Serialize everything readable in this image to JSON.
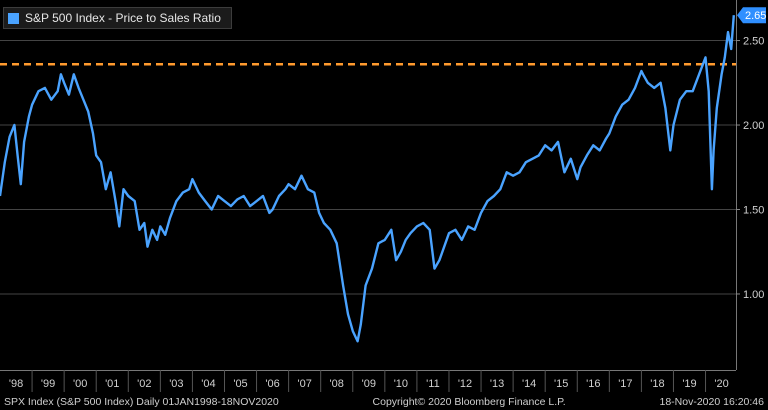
{
  "colors": {
    "background": "#000000",
    "series": "#4aa3ff",
    "reference": "#ff9a2e",
    "grid": "#444444",
    "badge": "#2f8fff"
  },
  "chart_data": {
    "type": "line",
    "title": "",
    "legend": {
      "placement": "top-left",
      "entries": [
        "S&P 500 Index - Price to Sales Ratio"
      ]
    },
    "xlabel": "",
    "ylabel": "",
    "x_tick_labels": [
      "'98",
      "'99",
      "'00",
      "'01",
      "'02",
      "'03",
      "'04",
      "'05",
      "'06",
      "'07",
      "'08",
      "'09",
      "'10",
      "'11",
      "'12",
      "'13",
      "'14",
      "'15",
      "'16",
      "'17",
      "'18",
      "'19",
      "'20"
    ],
    "y_ticks": [
      1.0,
      1.5,
      2.0,
      2.5
    ],
    "y_tick_labels": [
      "1.00",
      "1.50",
      "2.00",
      "2.50"
    ],
    "ylim": [
      0.55,
      2.74
    ],
    "xlim": [
      1998.0,
      2020.95
    ],
    "grid": "horizontal",
    "reference_line": {
      "y": 2.36,
      "style": "dashed"
    },
    "last_value_label": "2.65",
    "series": [
      {
        "name": "S&P 500 Index - Price to Sales Ratio",
        "x": [
          1998.0,
          1998.15,
          1998.3,
          1998.45,
          1998.55,
          1998.65,
          1998.75,
          1998.9,
          1999.0,
          1999.2,
          1999.4,
          1999.6,
          1999.8,
          1999.9,
          2000.0,
          2000.15,
          2000.3,
          2000.45,
          2000.6,
          2000.75,
          2000.9,
          2001.0,
          2001.15,
          2001.3,
          2001.45,
          2001.6,
          2001.72,
          2001.85,
          2002.0,
          2002.2,
          2002.35,
          2002.5,
          2002.6,
          2002.75,
          2002.9,
          2003.0,
          2003.15,
          2003.3,
          2003.5,
          2003.7,
          2003.9,
          2004.0,
          2004.2,
          2004.4,
          2004.6,
          2004.8,
          2005.0,
          2005.2,
          2005.4,
          2005.6,
          2005.8,
          2006.0,
          2006.2,
          2006.4,
          2006.5,
          2006.7,
          2006.9,
          2007.0,
          2007.2,
          2007.4,
          2007.6,
          2007.8,
          2007.95,
          2008.1,
          2008.3,
          2008.5,
          2008.7,
          2008.85,
          2009.0,
          2009.15,
          2009.25,
          2009.4,
          2009.6,
          2009.8,
          2010.0,
          2010.2,
          2010.35,
          2010.5,
          2010.65,
          2010.8,
          2011.0,
          2011.2,
          2011.4,
          2011.55,
          2011.7,
          2011.85,
          2012.0,
          2012.2,
          2012.4,
          2012.6,
          2012.8,
          2013.0,
          2013.2,
          2013.4,
          2013.6,
          2013.8,
          2014.0,
          2014.2,
          2014.4,
          2014.6,
          2014.8,
          2015.0,
          2015.2,
          2015.4,
          2015.6,
          2015.8,
          2016.0,
          2016.1,
          2016.3,
          2016.5,
          2016.7,
          2016.9,
          2017.0,
          2017.2,
          2017.4,
          2017.6,
          2017.8,
          2018.0,
          2018.05,
          2018.2,
          2018.4,
          2018.6,
          2018.75,
          2018.9,
          2019.0,
          2019.2,
          2019.4,
          2019.6,
          2019.8,
          2020.0,
          2020.1,
          2020.2,
          2020.25,
          2020.35,
          2020.5,
          2020.6,
          2020.7,
          2020.8,
          2020.88
        ],
        "values": [
          1.58,
          1.78,
          1.93,
          2.0,
          1.82,
          1.65,
          1.9,
          2.05,
          2.12,
          2.2,
          2.22,
          2.15,
          2.2,
          2.3,
          2.25,
          2.18,
          2.3,
          2.22,
          2.15,
          2.08,
          1.95,
          1.82,
          1.78,
          1.62,
          1.72,
          1.55,
          1.4,
          1.62,
          1.58,
          1.55,
          1.38,
          1.42,
          1.28,
          1.38,
          1.32,
          1.4,
          1.35,
          1.45,
          1.55,
          1.6,
          1.62,
          1.68,
          1.6,
          1.55,
          1.5,
          1.58,
          1.55,
          1.52,
          1.56,
          1.58,
          1.52,
          1.55,
          1.58,
          1.48,
          1.5,
          1.58,
          1.62,
          1.65,
          1.62,
          1.7,
          1.62,
          1.6,
          1.48,
          1.42,
          1.38,
          1.3,
          1.05,
          0.88,
          0.78,
          0.72,
          0.82,
          1.05,
          1.15,
          1.3,
          1.32,
          1.38,
          1.2,
          1.25,
          1.32,
          1.36,
          1.4,
          1.42,
          1.38,
          1.15,
          1.2,
          1.28,
          1.36,
          1.38,
          1.32,
          1.4,
          1.38,
          1.48,
          1.55,
          1.58,
          1.62,
          1.72,
          1.7,
          1.72,
          1.78,
          1.8,
          1.82,
          1.88,
          1.85,
          1.9,
          1.72,
          1.8,
          1.68,
          1.75,
          1.82,
          1.88,
          1.85,
          1.92,
          1.95,
          2.05,
          2.12,
          2.15,
          2.22,
          2.32,
          2.3,
          2.25,
          2.22,
          2.25,
          2.1,
          1.85,
          2.0,
          2.15,
          2.2,
          2.2,
          2.3,
          2.4,
          2.2,
          1.62,
          1.85,
          2.1,
          2.3,
          2.4,
          2.55,
          2.45,
          2.65
        ]
      }
    ]
  },
  "footer": {
    "left": "SPX Index (S&P 500 Index)  Daily 01JAN1998-18NOV2020",
    "center": "Copyright© 2020 Bloomberg Finance L.P.",
    "right": "18-Nov-2020 16:20:46"
  }
}
